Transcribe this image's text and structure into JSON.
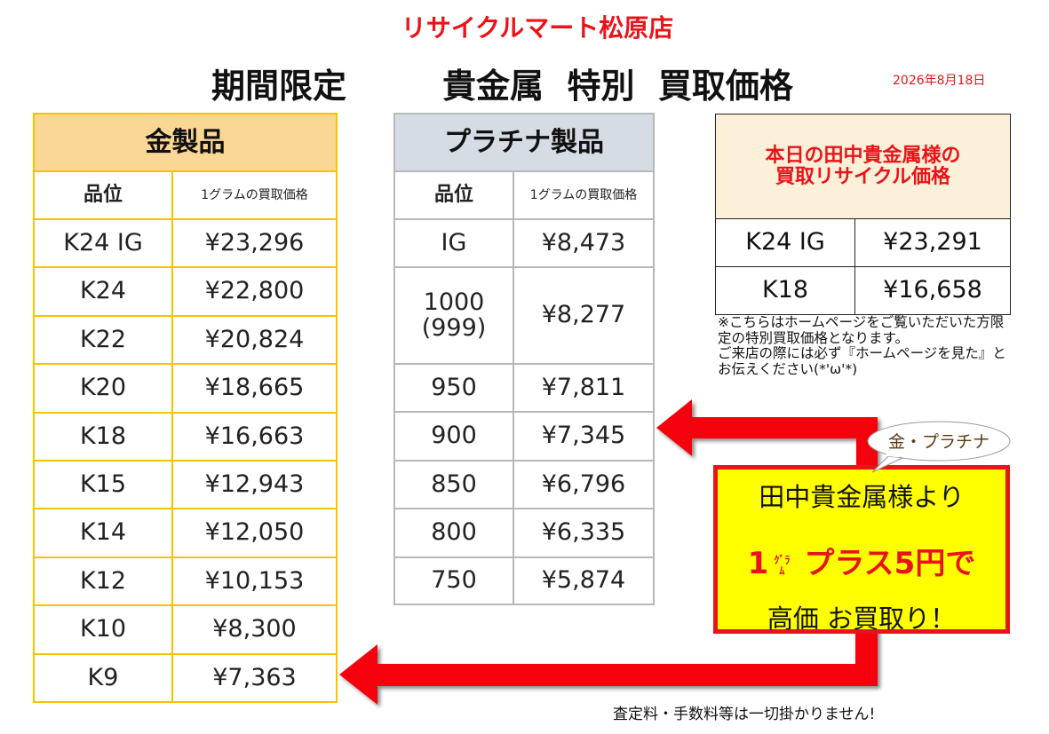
{
  "header": {
    "store": "リサイクルマート松原店",
    "title_left": "期間限定",
    "title_right": "貴金属  特別  買取価格",
    "date": "2026年8月18日"
  },
  "gold_table": {
    "title": "金製品",
    "columns": [
      "品位",
      "1グラムの買取価格"
    ],
    "rows": [
      [
        "K24 IG",
        "¥23,296"
      ],
      [
        "K24",
        "¥22,800"
      ],
      [
        "K22",
        "¥20,824"
      ],
      [
        "K20",
        "¥18,665"
      ],
      [
        "K18",
        "¥16,663"
      ],
      [
        "K15",
        "¥12,943"
      ],
      [
        "K14",
        "¥12,050"
      ],
      [
        "K12",
        "¥10,153"
      ],
      [
        "K10",
        "¥8,300"
      ],
      [
        "K9",
        "¥7,363"
      ]
    ]
  },
  "platinum_table": {
    "title": "プラチナ製品",
    "columns": [
      "品位",
      "1グラムの買取価格"
    ],
    "rows": [
      [
        "IG",
        "¥8,473"
      ],
      [
        "1000\n(999)",
        "¥8,277"
      ],
      [
        "950",
        "¥7,811"
      ],
      [
        "900",
        "¥7,345"
      ],
      [
        "850",
        "¥6,796"
      ],
      [
        "800",
        "¥6,335"
      ],
      [
        "750",
        "¥5,874"
      ]
    ]
  },
  "tanaka_box": {
    "title": "本日の田中貴金属様の\n買取リサイクル価格",
    "rows": [
      [
        "K24 IG",
        "¥23,291"
      ],
      [
        "K18",
        "¥16,658"
      ]
    ]
  },
  "note": "※こちらはホームページをご覧いただいた方限定の特別買取価格となります。\nご来店の際には必ず『ホームページを見た』とお伝えください(*'ω'*)",
  "promo": {
    "bubble": "金・プラチナ",
    "line1": "田中貴金属様より",
    "line2_number": "1",
    "line2_unit": "ｸﾞﾗﾑ",
    "line2_text": "プラス5円で",
    "line3": "高価 お買取り！"
  },
  "footer": "査定料・手数料等は一切掛かりません!"
}
